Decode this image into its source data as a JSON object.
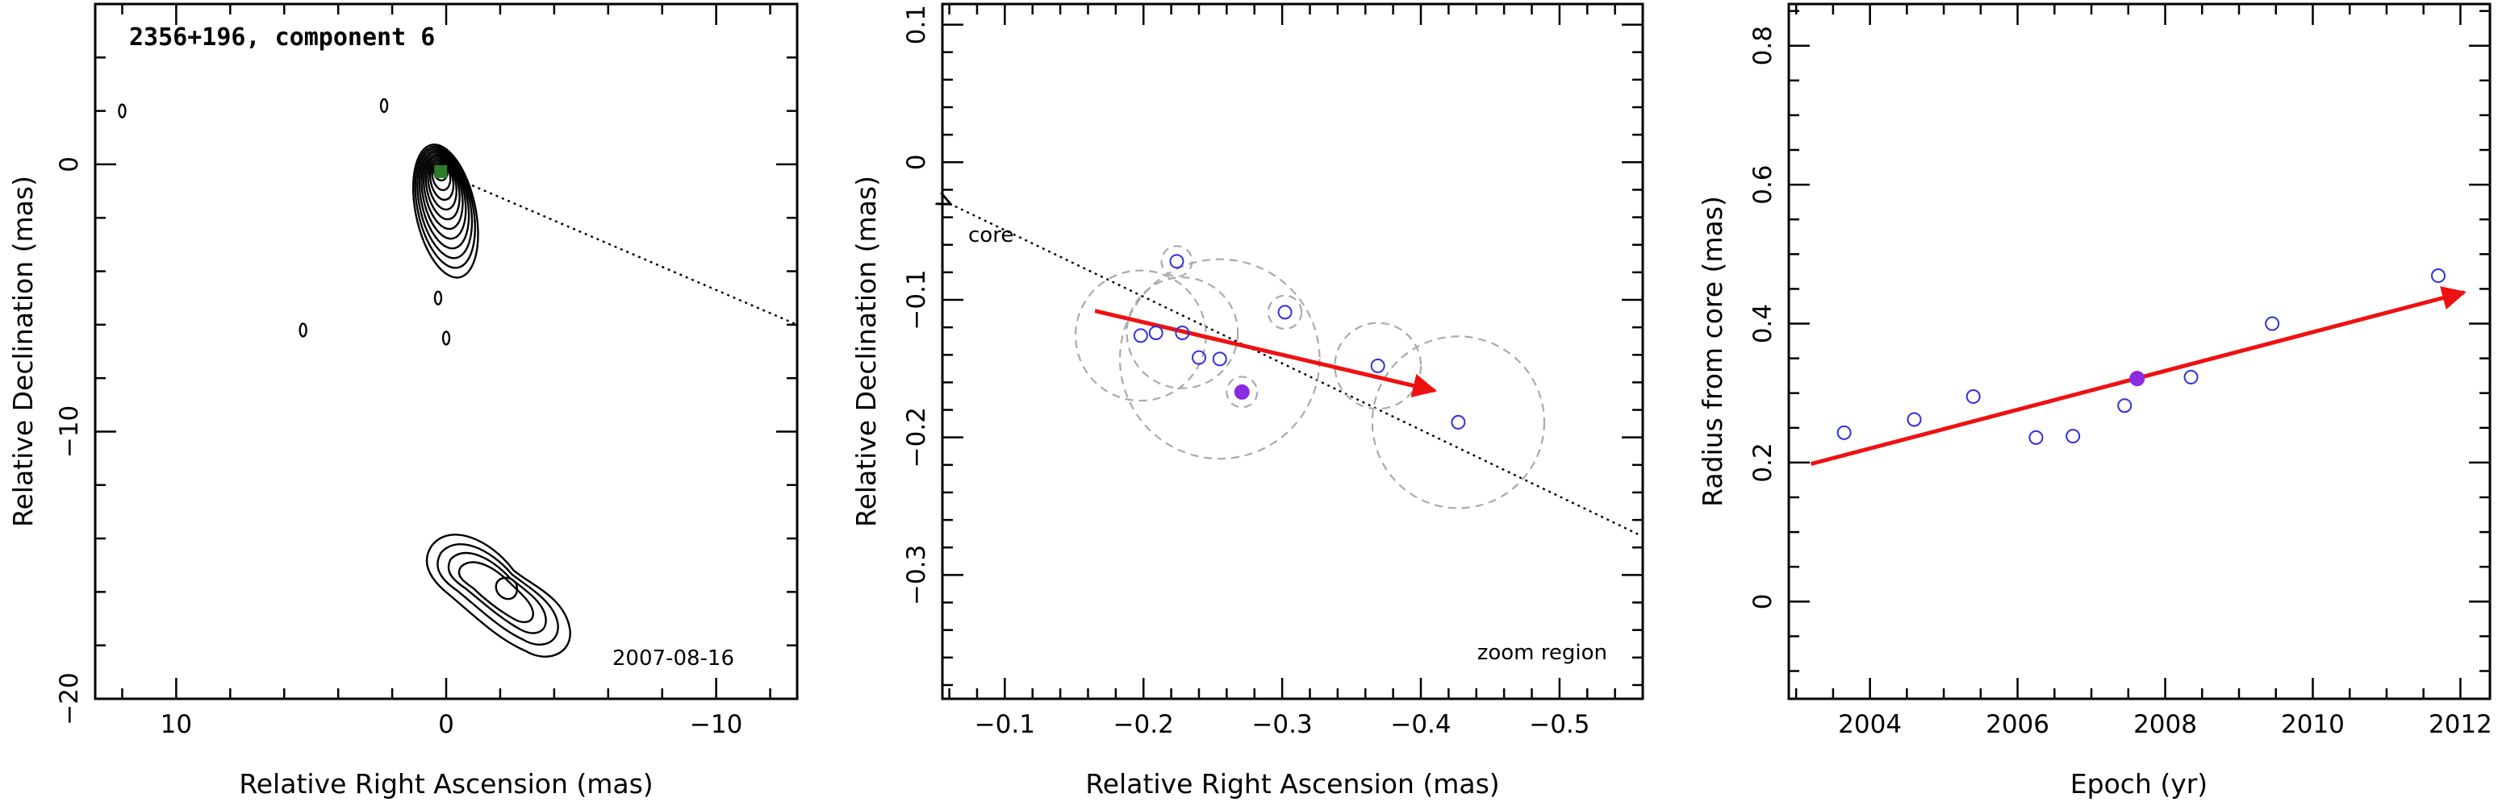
{
  "colors": {
    "point": "#3030e0",
    "highlight": "#8a2be2",
    "arrow": "#ee1111",
    "circle": "#aaaaaa",
    "marker": "#2d7a2d"
  },
  "chart_data": [
    {
      "type": "contour",
      "title": "2356+196, component 6",
      "date_label": "2007-08-16",
      "xlabel": "Relative Right Ascension (mas)",
      "ylabel": "Relative Declination (mas)",
      "xlim": [
        13,
        -13
      ],
      "ylim": [
        -20,
        6
      ],
      "x_ticks": [
        10,
        0,
        -10
      ],
      "x_tick_labels": [
        "10",
        "0",
        "−10"
      ],
      "y_ticks": [
        0,
        -10,
        -20
      ],
      "y_tick_labels": [
        "0",
        "−10",
        "−20"
      ],
      "core_position": [
        0.2,
        -0.1
      ],
      "jet_direction_line": {
        "from": [
          -0.3,
          -0.5
        ],
        "to": [
          -13,
          -6
        ]
      },
      "features": [
        {
          "name": "core",
          "x": 0.2,
          "y": -0.3
        },
        {
          "name": "lower-component",
          "x": -2.2,
          "y": -15.8
        },
        {
          "name": "small-island",
          "x": 12,
          "y": 2
        },
        {
          "name": "small-island",
          "x": 5.3,
          "y": -6.2
        },
        {
          "name": "small-island",
          "x": 2.3,
          "y": 2.2
        },
        {
          "name": "small-island",
          "x": 0.3,
          "y": -5
        },
        {
          "name": "small-island",
          "x": 0.0,
          "y": -6.5
        }
      ]
    },
    {
      "type": "scatter",
      "annotation": "zoom region",
      "core_label": "core",
      "xlabel": "Relative Right Ascension (mas)",
      "ylabel": "Relative Declination (mas)",
      "xlim": [
        -0.055,
        -0.56
      ],
      "ylim": [
        -0.39,
        0.115
      ],
      "x_ticks": [
        -0.1,
        -0.2,
        -0.3,
        -0.4,
        -0.5
      ],
      "x_tick_labels": [
        "−0.1",
        "−0.2",
        "−0.3",
        "−0.4",
        "−0.5"
      ],
      "y_ticks": [
        0.1,
        0,
        -0.1,
        -0.2,
        -0.3
      ],
      "y_tick_labels": [
        "0.1",
        "0",
        "−0.1",
        "−0.2",
        "−0.3"
      ],
      "points": [
        {
          "x": -0.198,
          "y": -0.126,
          "r": 0.047,
          "highlight": false
        },
        {
          "x": -0.209,
          "y": -0.124,
          "r": 0,
          "highlight": false
        },
        {
          "x": -0.224,
          "y": -0.072,
          "r": 0.011,
          "highlight": false
        },
        {
          "x": -0.228,
          "y": -0.124,
          "r": 0.04,
          "highlight": false
        },
        {
          "x": -0.24,
          "y": -0.142,
          "r": 0,
          "highlight": false
        },
        {
          "x": -0.255,
          "y": -0.143,
          "r": 0.072,
          "highlight": false
        },
        {
          "x": -0.302,
          "y": -0.109,
          "r": 0.012,
          "highlight": false
        },
        {
          "x": -0.369,
          "y": -0.148,
          "r": 0.031,
          "highlight": false
        },
        {
          "x": -0.427,
          "y": -0.189,
          "r": 0.062,
          "highlight": false
        },
        {
          "x": -0.271,
          "y": -0.167,
          "r": 0.011,
          "highlight": true
        }
      ],
      "trend_arrow": {
        "from": [
          -0.165,
          -0.108
        ],
        "to": [
          -0.41,
          -0.166
        ]
      },
      "core_line": {
        "from": [
          -0.06,
          -0.03
        ],
        "to": [
          -0.56,
          -0.272
        ]
      }
    },
    {
      "type": "scatter",
      "xlabel": "Epoch (yr)",
      "ylabel": "Radius from core (mas)",
      "xlim": [
        2002.9,
        2012.4
      ],
      "ylim": [
        -0.14,
        0.86
      ],
      "x_ticks": [
        2004,
        2006,
        2008,
        2010,
        2012
      ],
      "x_tick_labels": [
        "2004",
        "2006",
        "2008",
        "2010",
        "2012"
      ],
      "y_ticks": [
        0,
        0.2,
        0.4,
        0.6,
        0.8
      ],
      "y_tick_labels": [
        "0",
        "0.2",
        "0.4",
        "0.6",
        "0.8"
      ],
      "points": [
        {
          "x": 2003.65,
          "y": 0.243,
          "highlight": false
        },
        {
          "x": 2004.6,
          "y": 0.262,
          "highlight": false
        },
        {
          "x": 2005.4,
          "y": 0.295,
          "highlight": false
        },
        {
          "x": 2006.25,
          "y": 0.236,
          "highlight": false
        },
        {
          "x": 2006.75,
          "y": 0.238,
          "highlight": false
        },
        {
          "x": 2007.45,
          "y": 0.282,
          "highlight": false
        },
        {
          "x": 2007.62,
          "y": 0.321,
          "highlight": true
        },
        {
          "x": 2008.35,
          "y": 0.323,
          "highlight": false
        },
        {
          "x": 2009.45,
          "y": 0.4,
          "highlight": false
        },
        {
          "x": 2011.7,
          "y": 0.469,
          "highlight": false
        }
      ],
      "trend_arrow": {
        "from": [
          2003.2,
          0.198
        ],
        "to": [
          2012.05,
          0.445
        ]
      }
    }
  ]
}
